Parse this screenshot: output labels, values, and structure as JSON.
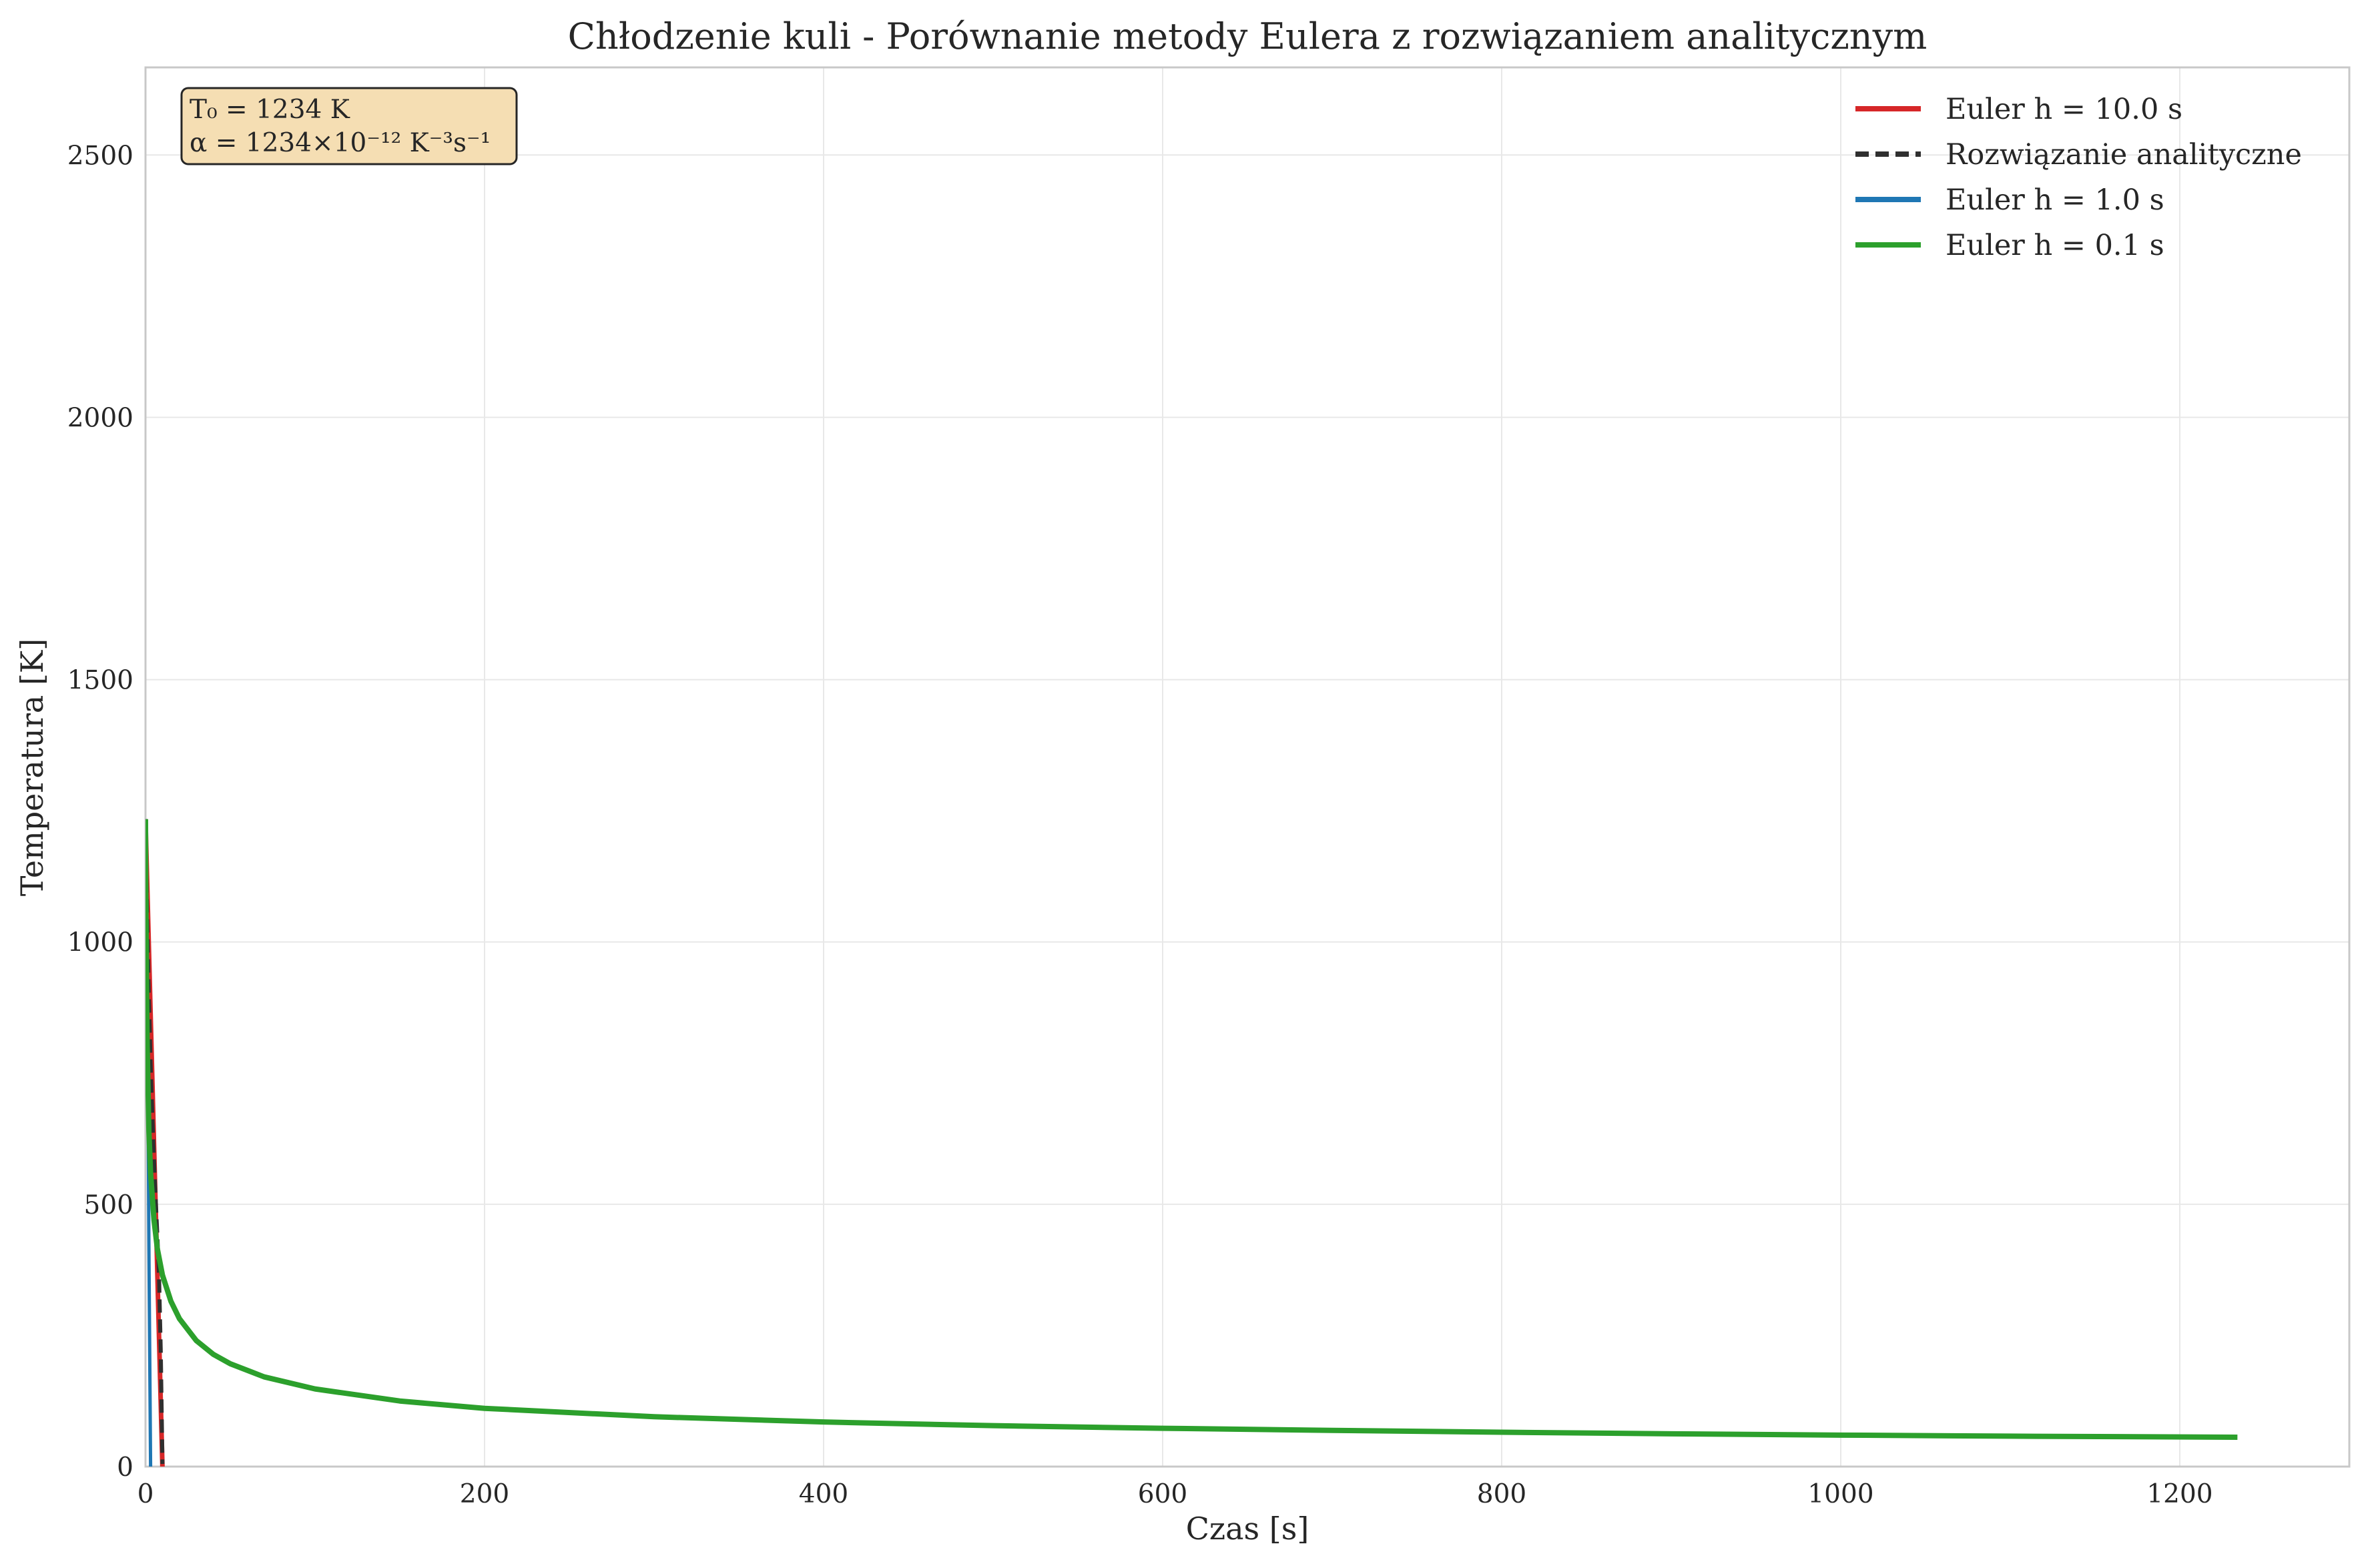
{
  "chart_data": {
    "type": "line",
    "title": "Chłodzenie kuli - Porównanie metody Eulera z rozwiązaniem analitycznym",
    "xlabel": "Czas [s]",
    "ylabel": "Temperatura [K]",
    "xlim": [
      0,
      1300
    ],
    "ylim": [
      0,
      2667
    ],
    "xticks": [
      0,
      200,
      400,
      600,
      800,
      1000,
      1200
    ],
    "yticks": [
      0,
      500,
      1000,
      1500,
      2000,
      2500
    ],
    "grid": true,
    "legend_position": "top-right",
    "annotation": {
      "line1": "T₀ = 1234 K",
      "line2": "α = 1234×10⁻¹² K⁻³s⁻¹"
    },
    "colors": {
      "euler_10": "#d62728",
      "analytic": "#2f2f2f",
      "euler_1": "#1f77b4",
      "euler_01": "#2ca02c",
      "annotation_bg": "#f5deb3"
    },
    "series": [
      {
        "name": "Euler h = 10.0 s",
        "style": "solid",
        "color": "#d62728",
        "x": [
          0,
          10
        ],
        "y": [
          1234,
          -2.0
        ]
      },
      {
        "name": "Rozwiązanie analityczne",
        "style": "dashed",
        "color": "#2f2f2f",
        "x": [
          0,
          0.5,
          1,
          2,
          3,
          4,
          5,
          6,
          7,
          8,
          9,
          10
        ],
        "y": [
          1234,
          1130,
          1040,
          890,
          770,
          670,
          585,
          510,
          440,
          360,
          220,
          5
        ]
      },
      {
        "name": "Euler h = 1.0 s",
        "style": "solid",
        "color": "#1f77b4",
        "x": [
          0,
          1,
          2,
          3
        ],
        "y": [
          1234,
          1000,
          420,
          0
        ]
      },
      {
        "name": "Euler h = 0.1 s",
        "style": "solid",
        "color": "#2ca02c",
        "x": [
          0,
          0.1,
          0.3,
          0.6,
          1,
          2,
          3,
          5,
          7,
          10,
          15,
          20,
          30,
          40,
          50,
          70,
          100,
          150,
          200,
          300,
          400,
          500,
          600,
          700,
          800,
          900,
          1000,
          1100,
          1234
        ],
        "y": [
          1234,
          1150,
          1050,
          920,
          800,
          640,
          560,
          470,
          415,
          365,
          315,
          282,
          240,
          214,
          196,
          171,
          148,
          125,
          111,
          95,
          85,
          78,
          73,
          69,
          65.5,
          62.5,
          60,
          58,
          56
        ]
      }
    ]
  }
}
